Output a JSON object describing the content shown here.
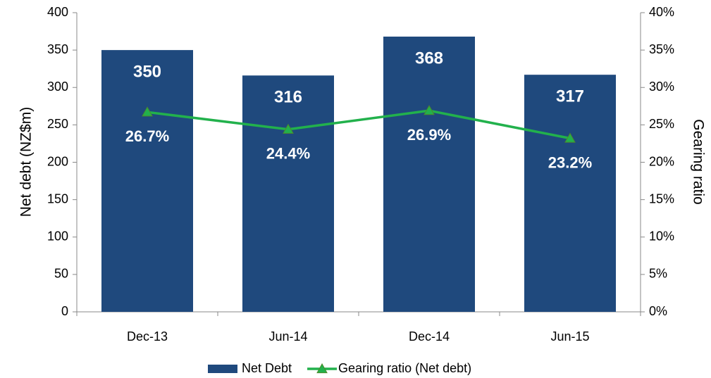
{
  "chart_data": {
    "type": "bar",
    "categories": [
      "Dec-13",
      "Jun-14",
      "Dec-14",
      "Jun-15"
    ],
    "series": [
      {
        "name": "Net Debt",
        "type": "bar",
        "color": "#1f497d",
        "values": [
          350,
          316,
          368,
          317
        ]
      },
      {
        "name": "Gearing ratio (Net debt)",
        "type": "line",
        "axis": "y2",
        "color": "#22b14c",
        "values": [
          26.7,
          24.4,
          26.9,
          23.2
        ],
        "value_labels": [
          "26.7%",
          "24.4%",
          "26.9%",
          "23.2%"
        ]
      }
    ],
    "y_label": "Net debt (NZ$m)",
    "y2_label": "Gearing ratio",
    "ylim": [
      0,
      400
    ],
    "yticks": [
      0,
      50,
      100,
      150,
      200,
      250,
      300,
      350,
      400
    ],
    "y2lim": [
      0,
      40
    ],
    "y2ticks": [
      {
        "value": 0,
        "label": "0%"
      },
      {
        "value": 5,
        "label": "5%"
      },
      {
        "value": 10,
        "label": "10%"
      },
      {
        "value": 15,
        "label": "15%"
      },
      {
        "value": 20,
        "label": "20%"
      },
      {
        "value": 25,
        "label": "25%"
      },
      {
        "value": 30,
        "label": "30%"
      },
      {
        "value": 35,
        "label": "35%"
      },
      {
        "value": 40,
        "label": "40%"
      }
    ],
    "grid": false,
    "legend": "bottom"
  }
}
